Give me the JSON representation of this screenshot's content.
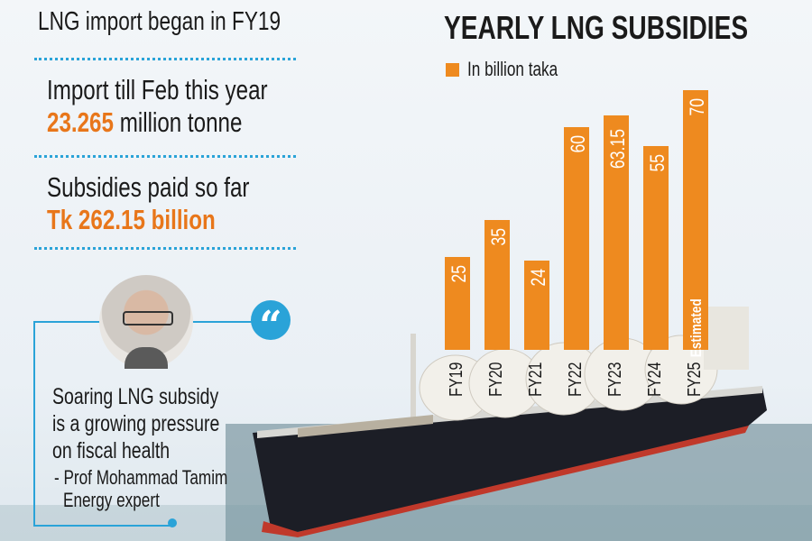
{
  "left_panel": {
    "fact1": "LNG import began in FY19",
    "fact2_label": "Import till Feb this year",
    "fact2_value": "23.265",
    "fact2_unit": "million tonne",
    "fact3_label": "Subsidies paid so far",
    "fact3_value": "Tk 262.15 billion"
  },
  "quote": {
    "text_lines": [
      "Soaring LNG subsidy",
      "is a growing pressure",
      "on fiscal health"
    ],
    "author": "- Prof Mohammad Tamim",
    "role": "Energy expert"
  },
  "colors": {
    "bar": "#ee8a1f",
    "accent": "#2aa3d8",
    "highlight": "#e8761a"
  },
  "chart_data": {
    "type": "bar",
    "title": "YEARLY LNG SUBSIDIES",
    "legend": "In billion taka",
    "legend_position": "top-left",
    "categories": [
      "FY19",
      "FY20",
      "FY21",
      "FY22",
      "FY23",
      "FY24",
      "FY25"
    ],
    "values": [
      25,
      35,
      24,
      60,
      63.15,
      55,
      70
    ],
    "value_labels": [
      "25",
      "35",
      "24",
      "60",
      "63.15",
      "55",
      "70"
    ],
    "annotations": [
      {
        "category": "FY25",
        "text": "Estimated"
      }
    ],
    "ylim": [
      0,
      70
    ],
    "xlabel": "",
    "ylabel": ""
  }
}
